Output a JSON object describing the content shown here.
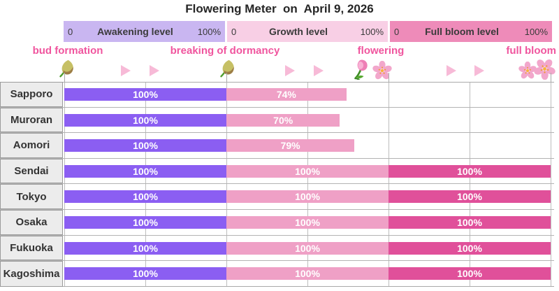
{
  "title": "Flowering Meter  on  April 9, 2026",
  "scales": [
    {
      "name": "Awakening level",
      "min": "0",
      "max": "100%",
      "bg": "#c9b6f1"
    },
    {
      "name": "Growth level",
      "min": "0",
      "max": "100%",
      "bg": "#f8cfe5"
    },
    {
      "name": "Full bloom level",
      "min": "0",
      "max": "100%",
      "bg": "#ee8bb9"
    }
  ],
  "stages": [
    {
      "label": "bud formation"
    },
    {
      "label": "breaking of dormancy"
    },
    {
      "label": "flowering"
    },
    {
      "label": "full bloom"
    }
  ],
  "icons": [
    "flower-bud-icon",
    "arrow-icon",
    "flower-bud-icon",
    "arrow-icon",
    "tulip-icon",
    "cherry-blossom-icon",
    "arrow-icon",
    "cherry-blossoms-icon"
  ],
  "colors": {
    "awakening_bar": "#8b5ef2",
    "growth_bar": "#efa0c6",
    "full_bloom_bar": "#e0509a",
    "stage_text": "#f0559e",
    "arrow": "#f7bad7",
    "label_cell_bg": "#ececec",
    "gridline": "#bdbdbd"
  },
  "table": {
    "rows": [
      {
        "city": "Sapporo",
        "awakening": 100,
        "growth": 74,
        "full_bloom": 0,
        "awakening_label": "100%",
        "growth_label": "74%",
        "full_bloom_label": ""
      },
      {
        "city": "Muroran",
        "awakening": 100,
        "growth": 70,
        "full_bloom": 0,
        "awakening_label": "100%",
        "growth_label": "70%",
        "full_bloom_label": ""
      },
      {
        "city": "Aomori",
        "awakening": 100,
        "growth": 79,
        "full_bloom": 0,
        "awakening_label": "100%",
        "growth_label": "79%",
        "full_bloom_label": ""
      },
      {
        "city": "Sendai",
        "awakening": 100,
        "growth": 100,
        "full_bloom": 100,
        "awakening_label": "100%",
        "growth_label": "100%",
        "full_bloom_label": "100%"
      },
      {
        "city": "Tokyo",
        "awakening": 100,
        "growth": 100,
        "full_bloom": 100,
        "awakening_label": "100%",
        "growth_label": "100%",
        "full_bloom_label": "100%"
      },
      {
        "city": "Osaka",
        "awakening": 100,
        "growth": 100,
        "full_bloom": 100,
        "awakening_label": "100%",
        "growth_label": "100%",
        "full_bloom_label": "100%"
      },
      {
        "city": "Fukuoka",
        "awakening": 100,
        "growth": 100,
        "full_bloom": 100,
        "awakening_label": "100%",
        "growth_label": "100%",
        "full_bloom_label": "100%"
      },
      {
        "city": "Kagoshima",
        "awakening": 100,
        "growth": 100,
        "full_bloom": 100,
        "awakening_label": "100%",
        "growth_label": "100%",
        "full_bloom_label": "100%"
      }
    ]
  },
  "chart_data": {
    "type": "bar",
    "title": "Flowering Meter on April 9, 2026",
    "categories": [
      "Sapporo",
      "Muroran",
      "Aomori",
      "Sendai",
      "Tokyo",
      "Osaka",
      "Fukuoka",
      "Kagoshima"
    ],
    "series": [
      {
        "name": "Awakening level",
        "values": [
          100,
          100,
          100,
          100,
          100,
          100,
          100,
          100
        ]
      },
      {
        "name": "Growth level",
        "values": [
          74,
          70,
          79,
          100,
          100,
          100,
          100,
          100
        ]
      },
      {
        "name": "Full bloom level",
        "values": [
          0,
          0,
          0,
          100,
          100,
          100,
          100,
          100
        ]
      }
    ],
    "stage_milestones": [
      "bud formation",
      "breaking of dormancy",
      "flowering",
      "full bloom"
    ],
    "orientation": "horizontal",
    "segment_range": [
      0,
      100
    ],
    "grid": true,
    "legend_position": "top"
  }
}
